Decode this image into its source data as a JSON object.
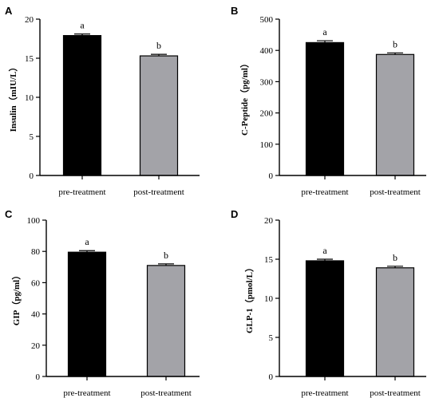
{
  "colors": {
    "pre": "#000000",
    "post": "#a3a3a8",
    "axis": "#000000"
  },
  "chart_data": [
    {
      "panel": "A",
      "type": "bar",
      "categories": [
        "pre-treatment",
        "post-treatment"
      ],
      "values": [
        17.9,
        15.3
      ],
      "errors": [
        0.2,
        0.2
      ],
      "significance": [
        "a",
        "b"
      ],
      "ylabel": "Insulin（mIU/L）",
      "ylim": [
        0,
        20
      ],
      "yticks": [
        0,
        5,
        10,
        15,
        20
      ]
    },
    {
      "panel": "B",
      "type": "bar",
      "categories": [
        "pre-treatment",
        "post-treatment"
      ],
      "values": [
        425,
        387
      ],
      "errors": [
        6,
        5
      ],
      "significance": [
        "a",
        "b"
      ],
      "ylabel": "C-Peptide（pg/ml）",
      "ylim": [
        0,
        500
      ],
      "yticks": [
        0,
        100,
        200,
        300,
        400,
        500
      ]
    },
    {
      "panel": "C",
      "type": "bar",
      "categories": [
        "pre-treatment",
        "post-treatment"
      ],
      "values": [
        79.5,
        71
      ],
      "errors": [
        1.0,
        1.0
      ],
      "significance": [
        "a",
        "b"
      ],
      "ylabel": "GIP（pg/ml）",
      "ylim": [
        0,
        100
      ],
      "yticks": [
        0,
        20,
        40,
        60,
        80,
        100
      ]
    },
    {
      "panel": "D",
      "type": "bar",
      "categories": [
        "pre-treatment",
        "post-treatment"
      ],
      "values": [
        14.8,
        13.9
      ],
      "errors": [
        0.2,
        0.2
      ],
      "significance": [
        "a",
        "b"
      ],
      "ylabel": "GLP-1（pmol/L）",
      "ylim": [
        0,
        20
      ],
      "yticks": [
        0,
        5,
        10,
        15,
        20
      ]
    }
  ]
}
